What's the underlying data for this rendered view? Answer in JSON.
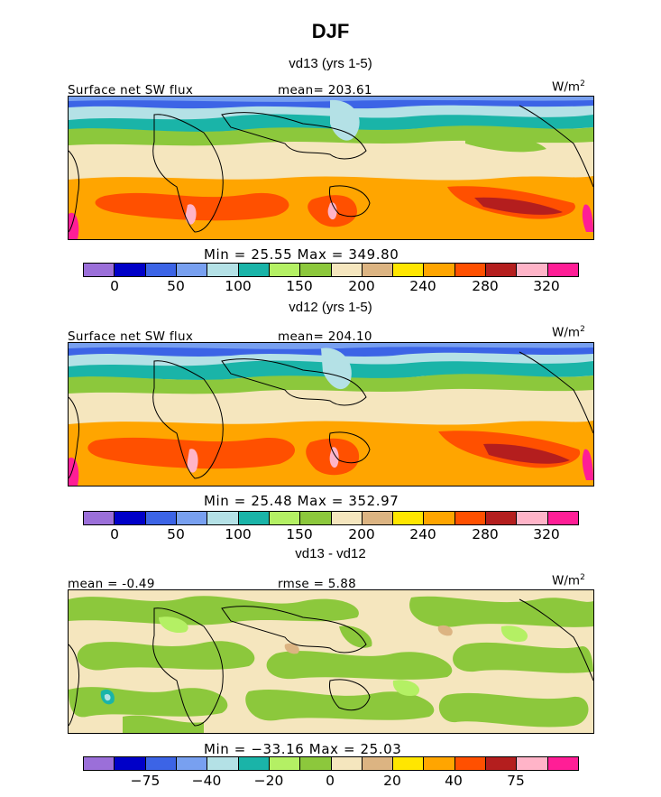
{
  "figure": {
    "title": "DJF",
    "units_base": "W/m",
    "units_exp": "2"
  },
  "palette": [
    "#9b6fd9",
    "#0000c8",
    "#3c64e6",
    "#78a0f0",
    "#b4e1e6",
    "#1ab4a8",
    "#b4f064",
    "#8cc83c",
    "#f5e6be",
    "#dcb482",
    "#ffe600",
    "#ffa500",
    "#ff5000",
    "#b41e1e",
    "#ffb4c8",
    "#ff1e96"
  ],
  "chart_data": [
    {
      "type": "heatmap",
      "title": "vd13 (yrs 1-5)",
      "variable_label": "Surface net SW flux",
      "stat_label": "mean= 203.61",
      "min_max": "Min =   25.55 Max =  349.80",
      "colorbar_ticks": [
        "0",
        "50",
        "100",
        "150",
        "200",
        "240",
        "280",
        "320"
      ],
      "mean": 203.61,
      "min": 25.55,
      "max": 349.8
    },
    {
      "type": "heatmap",
      "title": "vd12 (yrs 1-5)",
      "variable_label": "Surface net SW flux",
      "stat_label": "mean= 204.10",
      "min_max": "Min =   25.48 Max =  352.97",
      "colorbar_ticks": [
        "0",
        "50",
        "100",
        "150",
        "200",
        "240",
        "280",
        "320"
      ],
      "mean": 204.1,
      "min": 25.48,
      "max": 352.97
    },
    {
      "type": "heatmap",
      "title": "vd13 - vd12",
      "variable_label": "mean =   -0.49",
      "stat_label": "rmse =    5.88",
      "min_max": "Min = −33.16 Max =  25.03",
      "colorbar_ticks": [
        "−75",
        "−40",
        "−20",
        "0",
        "20",
        "40",
        "75"
      ],
      "mean": -0.49,
      "rmse": 5.88,
      "min": -33.16,
      "max": 25.03
    }
  ]
}
